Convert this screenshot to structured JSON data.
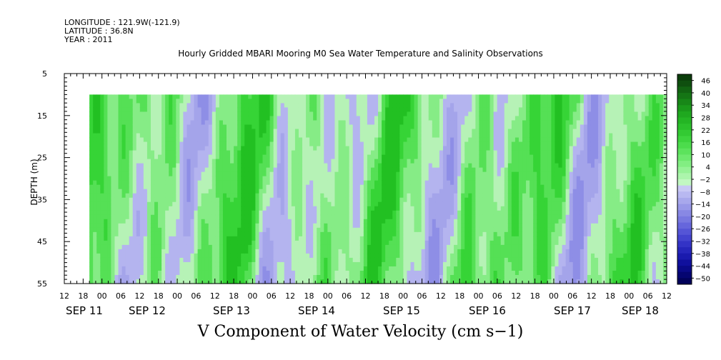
{
  "header": {
    "longitude": "LONGITUDE : 121.9W(-121.9)",
    "latitude": "LATITUDE : 36.8N",
    "year": "YEAR : 2011"
  },
  "chart_data": {
    "type": "heatmap",
    "title": "Hourly Gridded MBARI Mooring M0 Sea Water Temperature and Salinity Observations",
    "xlabel": "V Component of Water Velocity (cm s−1)",
    "ylabel": "DEPTH (m)",
    "y_ticks": [
      "5",
      "15",
      "25",
      "35",
      "45",
      "55"
    ],
    "y_range": [
      5,
      55
    ],
    "x_hour_ticks": [
      "12",
      "18",
      "00",
      "06",
      "12",
      "18",
      "00",
      "06",
      "12",
      "18",
      "00",
      "06",
      "12",
      "18",
      "00",
      "06",
      "12",
      "18",
      "00",
      "06",
      "12",
      "18",
      "00",
      "06",
      "12",
      "18",
      "00",
      "06",
      "12",
      "18",
      "00",
      "06",
      "12"
    ],
    "x_day_labels": [
      "SEP 11",
      "SEP 12",
      "SEP 13",
      "SEP 14",
      "SEP 15",
      "SEP 16",
      "SEP 17",
      "SEP 18"
    ],
    "colorbar_labels": [
      "46",
      "40",
      "34",
      "28",
      "22",
      "16",
      "10",
      "4",
      "−2",
      "−8",
      "−14",
      "−20",
      "−26",
      "−32",
      "−38",
      "−44",
      "−50"
    ],
    "colorbar_range": [
      -50,
      52
    ],
    "data_start": "SEP 11 20:00",
    "data_depth_top": 10
  }
}
